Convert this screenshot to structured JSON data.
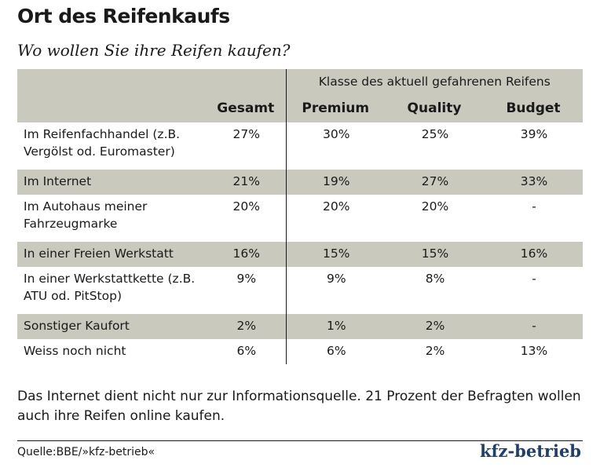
{
  "title": "Ort des Reifenkaufs",
  "subtitle": "Wo wollen Sie ihre Reifen kaufen?",
  "chart_data": {
    "type": "table",
    "group_header": "Klasse des aktuell gefahrenen Reifens",
    "columns": [
      "Gesamt",
      "Premium",
      "Quality",
      "Budget"
    ],
    "rows": [
      {
        "label": "Im Reifenfachhandel (z.B. Vergölst od. Euromaster)",
        "values": [
          "27%",
          "30%",
          "25%",
          "39%"
        ]
      },
      {
        "label": "Im Internet",
        "values": [
          "21%",
          "19%",
          "27%",
          "33%"
        ]
      },
      {
        "label": "Im Autohaus meiner Fahrzeugmarke",
        "values": [
          "20%",
          "20%",
          "20%",
          "-"
        ]
      },
      {
        "label": "In einer Freien Werkstatt",
        "values": [
          "16%",
          "15%",
          "15%",
          "16%"
        ]
      },
      {
        "label": "In einer Werkstattkette (z.B. ATU od. PitStop)",
        "values": [
          "9%",
          "9%",
          "8%",
          "-"
        ]
      },
      {
        "label": "Sonstiger Kaufort",
        "values": [
          "2%",
          "1%",
          "2%",
          "-"
        ]
      },
      {
        "label": "Weiss noch nicht",
        "values": [
          "6%",
          "6%",
          "2%",
          "13%"
        ]
      }
    ]
  },
  "note": "Das Internet dient nicht nur zur Informationsquelle. 21 Prozent der Befragten wollen auch ihre Reifen online kaufen.",
  "source": "Quelle:BBE/»kfz-betrieb«",
  "brand": "kfz-betrieb",
  "colors": {
    "shade": "#c9c9be",
    "text": "#1a1a1a",
    "brand": "#1f3f6e"
  }
}
